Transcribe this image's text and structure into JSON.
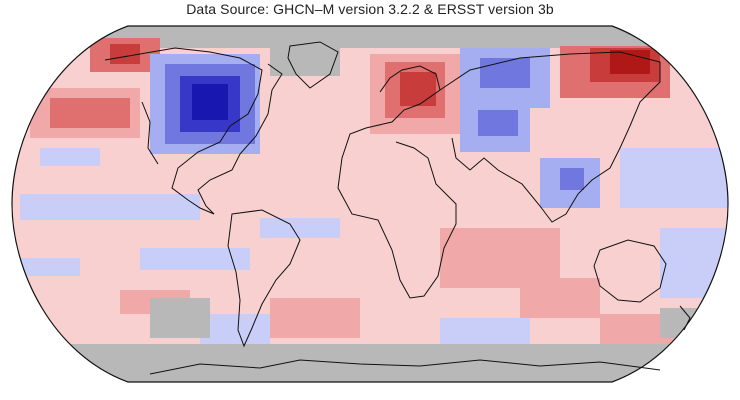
{
  "header": {
    "source_text": "Data Source: GHCN–M version 3.2.2 & ERSST version 3b"
  },
  "map": {
    "projection": "Robinson",
    "no_data_color": "#b8b8b8",
    "warm_colors": [
      "#f9d0d0",
      "#f0a8a8",
      "#e07070",
      "#c83c3c",
      "#b01818"
    ],
    "cool_colors": [
      "#c8cef8",
      "#a4aef0",
      "#7078e0",
      "#3838c8",
      "#1818b0"
    ],
    "coastline_color": "#111111",
    "border_color": "#444444"
  }
}
